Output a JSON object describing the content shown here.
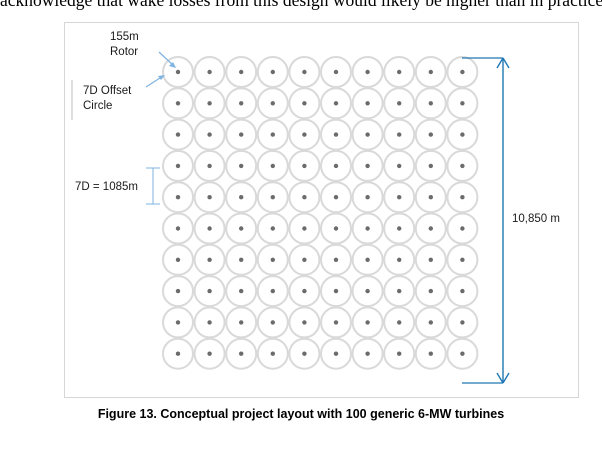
{
  "page": {
    "top_text": "acknowledge that wake losses from this design would likely be higher than in practice."
  },
  "diagram": {
    "grid": {
      "rows": 10,
      "cols": 10
    },
    "labels": {
      "rotor": [
        "155m",
        "Rotor"
      ],
      "offset_circle": [
        "7D Offset",
        "Circle"
      ],
      "spacing": "7D = 1085m",
      "height": "10,850 m"
    },
    "colors": {
      "circle_stroke": "#d9d9d9",
      "dot": "#6b6b6b",
      "arrow": "#1f77b4",
      "pointer": "#7fb3e0"
    }
  },
  "caption": "Figure 13. Conceptual project layout with 100 generic 6-MW turbines"
}
